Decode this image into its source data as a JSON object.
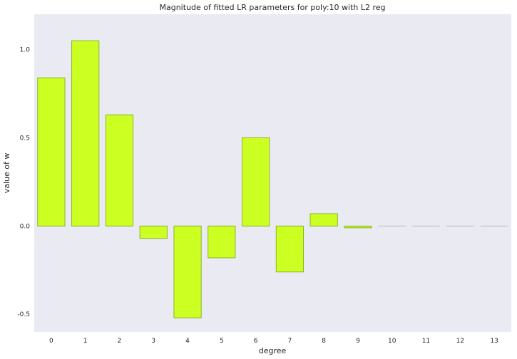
{
  "chart_data": {
    "type": "bar",
    "title": "Magnitude of fitted LR parameters for poly:10 with L2 reg",
    "xlabel": "degree",
    "ylabel": "value of w",
    "categories": [
      "0",
      "1",
      "2",
      "3",
      "4",
      "5",
      "6",
      "7",
      "8",
      "9",
      "10",
      "11",
      "12",
      "13"
    ],
    "values": [
      0.84,
      1.05,
      0.63,
      -0.07,
      -0.52,
      -0.18,
      0.5,
      -0.26,
      0.07,
      -0.01,
      0.0,
      0.0,
      0.0,
      0.0
    ],
    "ylim": [
      -0.6,
      1.2
    ],
    "yticks": [
      -0.5,
      0.0,
      0.5,
      1.0
    ],
    "ytick_labels": [
      "-0.5",
      "0.0",
      "0.5",
      "1.0"
    ],
    "grid": false,
    "colors": {
      "background": "#eaeaf2",
      "bar_fill": "#ccff22",
      "bar_edge": "#8fb32a",
      "zero_bar": "#bbbbbb"
    }
  }
}
